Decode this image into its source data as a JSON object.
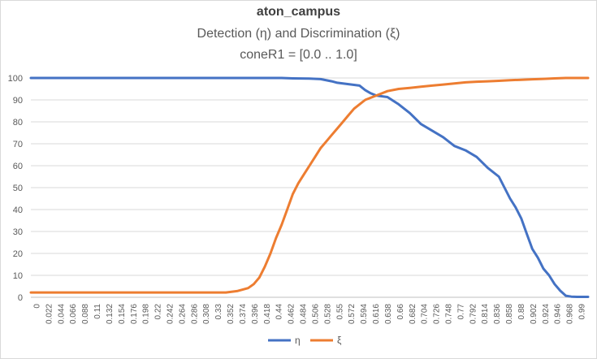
{
  "chart_data": {
    "type": "line",
    "title": "aton_campus",
    "subtitle": "Detection (η) and Discrimination (ξ)",
    "subtitle2": "coneR1 = [0.0 .. 1.0]",
    "xlabel": "",
    "ylabel": "",
    "ylim": [
      0,
      100
    ],
    "yticks": [
      0,
      10,
      20,
      30,
      40,
      50,
      60,
      70,
      80,
      90,
      100
    ],
    "xtick_labels": [
      "0",
      "0.022",
      "0.044",
      "0.066",
      "0.088",
      "0.11",
      "0.132",
      "0.154",
      "0.176",
      "0.198",
      "0.22",
      "0.242",
      "0.264",
      "0.286",
      "0.308",
      "0.33",
      "0.352",
      "0.374",
      "0.396",
      "0.418",
      "0.44",
      "0.462",
      "0.484",
      "0.506",
      "0.528",
      "0.55",
      "0.572",
      "0.594",
      "0.616",
      "0.638",
      "0.66",
      "0.682",
      "0.704",
      "0.726",
      "0.748",
      "0.77",
      "0.792",
      "0.814",
      "0.836",
      "0.858",
      "0.88",
      "0.902",
      "0.924",
      "0.946",
      "0.968",
      "0.99"
    ],
    "grid": true,
    "legend_position": "bottom",
    "series": [
      {
        "name": "η",
        "color": "#4472C4",
        "x": [
          0,
          0.1,
          0.2,
          0.3,
          0.35,
          0.4,
          0.45,
          0.47,
          0.5,
          0.52,
          0.54,
          0.55,
          0.57,
          0.59,
          0.6,
          0.61,
          0.62,
          0.64,
          0.66,
          0.68,
          0.7,
          0.72,
          0.74,
          0.76,
          0.78,
          0.8,
          0.82,
          0.84,
          0.85,
          0.86,
          0.87,
          0.88,
          0.89,
          0.9,
          0.91,
          0.92,
          0.93,
          0.94,
          0.95,
          0.96,
          0.97,
          0.98,
          0.99,
          1.0
        ],
        "y": [
          100,
          100,
          100,
          100,
          100,
          100,
          100,
          99.8,
          99.7,
          99.5,
          98.5,
          97.8,
          97.2,
          96.5,
          94.5,
          93,
          92,
          91.3,
          88,
          84,
          79,
          76,
          73,
          69,
          67,
          64,
          59,
          55,
          50,
          45,
          41,
          36,
          29,
          22,
          18,
          13,
          10,
          6,
          3,
          0.7,
          0.3,
          0.2,
          0.2,
          0.2
        ]
      },
      {
        "name": "ξ",
        "color": "#ED7D31",
        "x": [
          0,
          0.1,
          0.2,
          0.3,
          0.35,
          0.37,
          0.39,
          0.4,
          0.41,
          0.42,
          0.43,
          0.44,
          0.45,
          0.46,
          0.47,
          0.48,
          0.49,
          0.5,
          0.51,
          0.52,
          0.53,
          0.54,
          0.55,
          0.56,
          0.57,
          0.58,
          0.59,
          0.6,
          0.62,
          0.64,
          0.66,
          0.68,
          0.7,
          0.72,
          0.74,
          0.76,
          0.78,
          0.8,
          0.82,
          0.84,
          0.86,
          0.88,
          0.9,
          0.92,
          0.94,
          0.96,
          0.98,
          1.0
        ],
        "y": [
          2.2,
          2.2,
          2.2,
          2.2,
          2.2,
          2.8,
          4.2,
          6,
          9,
          14,
          20,
          27,
          33,
          40,
          47,
          52,
          56,
          60,
          64,
          68,
          71,
          74,
          77,
          80,
          83,
          86,
          88,
          90,
          92,
          94,
          95,
          95.5,
          96,
          96.5,
          97,
          97.5,
          98,
          98.3,
          98.5,
          98.7,
          99,
          99.2,
          99.4,
          99.6,
          99.8,
          100,
          100,
          100
        ]
      }
    ]
  }
}
